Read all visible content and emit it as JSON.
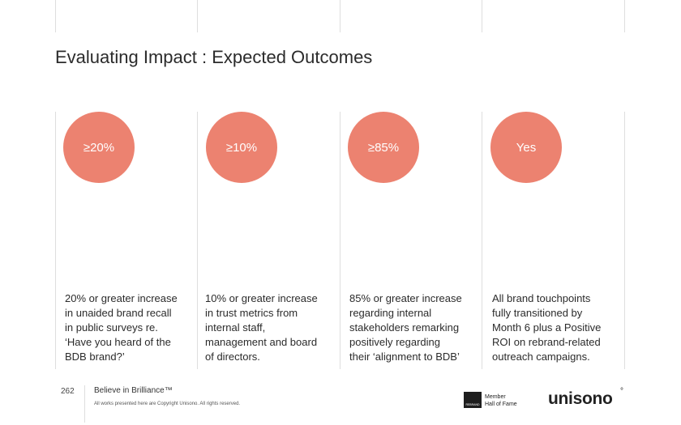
{
  "title": "Evaluating Impact : Expected Outcomes",
  "accent_color": "#ec8270",
  "outcomes": [
    {
      "value": "≥20%",
      "lines": [
        "20% or greater increase",
        "in unaided brand recall",
        "in public surveys re.",
        "‘Have you heard of the",
        "BDB brand?’"
      ]
    },
    {
      "value": "≥10%",
      "lines": [
        "10% or greater increase",
        "in trust metrics from",
        "internal staff,",
        "management and board",
        "of directors."
      ]
    },
    {
      "value": "≥85%",
      "lines": [
        "85% or greater increase",
        "regarding internal",
        "stakeholders remarking",
        "positively regarding",
        "their ‘alignment to BDB’"
      ]
    },
    {
      "value": "Yes",
      "lines": [
        "All brand touchpoints",
        "fully transitioned by",
        "Month 6 plus a Positive",
        "ROI on rebrand-related",
        "outreach campaigns."
      ]
    }
  ],
  "footer": {
    "page_number": "262",
    "tagline": "Believe in Brilliance™",
    "copyright": "All works presented here are Copyright Unisono. All rights reserved.",
    "badge_text": "REBRAND",
    "member_line1": "Member",
    "member_line2": "Hall of Fame",
    "logo_text": "unisono",
    "logo_mark": "°"
  }
}
